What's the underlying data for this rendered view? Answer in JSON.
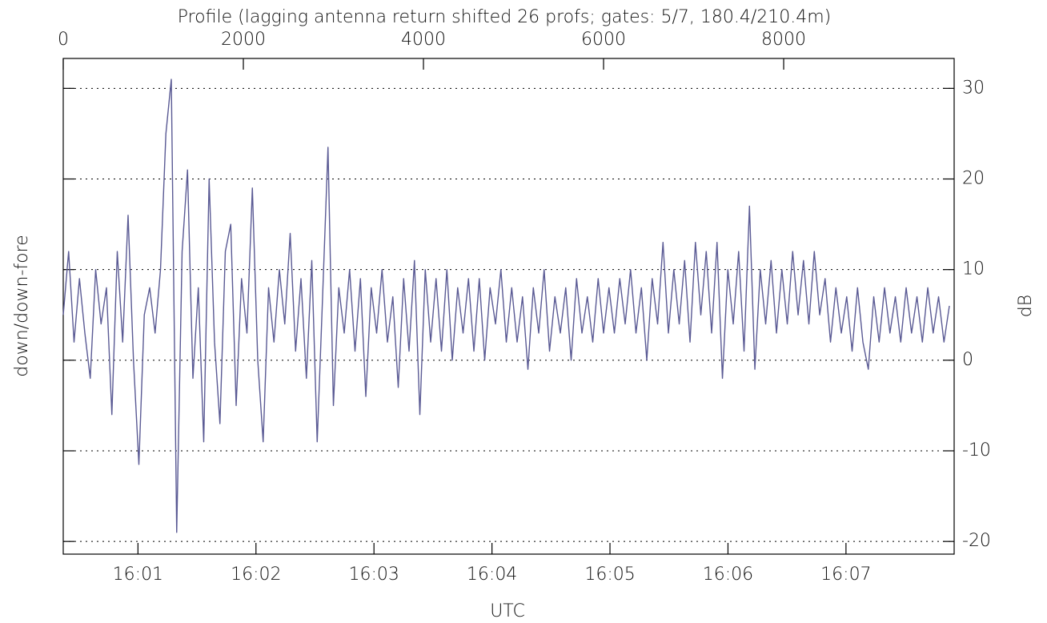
{
  "chart_data": {
    "type": "line",
    "title": "Profile (lagging antenna return shifted 26 profs; gates: 5/7, 180.4/210.4m)",
    "y_label": "down/down-fore",
    "y2_label": "dB",
    "x2_label": "UTC",
    "xlim": [
      0,
      9893
    ],
    "xticks": [
      0,
      2000,
      4000,
      6000,
      8000
    ],
    "x2lim": [
      57622,
      58075
    ],
    "x2ticks": [
      {
        "value": 57660,
        "label": "16:01"
      },
      {
        "value": 57720,
        "label": "16:02"
      },
      {
        "value": 57780,
        "label": "16:03"
      },
      {
        "value": 57840,
        "label": "16:04"
      },
      {
        "value": 57900,
        "label": "16:05"
      },
      {
        "value": 57960,
        "label": "16:06"
      },
      {
        "value": 58020,
        "label": "16:07"
      }
    ],
    "ylim": [
      -21.4,
      33.3
    ],
    "yticks": [
      -20,
      -10,
      0,
      10,
      20,
      30
    ],
    "grid": true,
    "x": [
      0,
      60,
      120,
      180,
      240,
      300,
      360,
      420,
      480,
      540,
      600,
      660,
      720,
      780,
      840,
      900,
      960,
      1020,
      1080,
      1140,
      1200,
      1260,
      1320,
      1380,
      1440,
      1500,
      1560,
      1620,
      1680,
      1740,
      1800,
      1860,
      1920,
      1980,
      2040,
      2100,
      2160,
      2220,
      2280,
      2340,
      2400,
      2460,
      2520,
      2580,
      2640,
      2700,
      2760,
      2820,
      2880,
      2940,
      3000,
      3060,
      3120,
      3180,
      3240,
      3300,
      3360,
      3420,
      3480,
      3540,
      3600,
      3660,
      3720,
      3780,
      3840,
      3900,
      3960,
      4020,
      4080,
      4140,
      4200,
      4260,
      4320,
      4380,
      4440,
      4500,
      4560,
      4620,
      4680,
      4740,
      4800,
      4860,
      4920,
      4980,
      5040,
      5100,
      5160,
      5220,
      5280,
      5340,
      5400,
      5460,
      5520,
      5580,
      5640,
      5700,
      5760,
      5820,
      5880,
      5940,
      6000,
      6060,
      6120,
      6180,
      6240,
      6300,
      6360,
      6420,
      6480,
      6540,
      6600,
      6660,
      6720,
      6780,
      6840,
      6900,
      6960,
      7020,
      7080,
      7140,
      7200,
      7260,
      7320,
      7380,
      7440,
      7500,
      7560,
      7620,
      7680,
      7740,
      7800,
      7860,
      7920,
      7980,
      8040,
      8100,
      8160,
      8220,
      8280,
      8340,
      8400,
      8460,
      8520,
      8580,
      8640,
      8700,
      8760,
      8820,
      8880,
      8940,
      9000,
      9060,
      9120,
      9180,
      9240,
      9300,
      9360,
      9420,
      9480,
      9540,
      9600,
      9660,
      9720,
      9780,
      9840
    ],
    "series": [
      {
        "color": "#5a5a94",
        "values": [
          5,
          12,
          2,
          9,
          3,
          -2,
          10,
          4,
          8,
          -6,
          12,
          2,
          16,
          0,
          -11.5,
          5,
          8,
          3,
          10,
          25,
          31,
          -19,
          12,
          21,
          -2,
          8,
          -9,
          20,
          2,
          -7,
          12,
          15,
          -5,
          9,
          3,
          19,
          0,
          -9,
          8,
          2,
          10,
          4,
          14,
          1,
          9,
          -2,
          11,
          -9,
          7,
          23.5,
          -5,
          8,
          3,
          10,
          1,
          9,
          -4,
          8,
          3,
          10,
          2,
          7,
          -3,
          9,
          1,
          11,
          -6,
          10,
          2,
          9,
          1,
          10,
          0,
          8,
          3,
          9,
          1,
          9,
          0,
          8,
          4,
          10,
          2,
          8,
          2,
          7,
          -1,
          8,
          3,
          10,
          1,
          7,
          3,
          8,
          0,
          9,
          3,
          7,
          2,
          9,
          3,
          8,
          3,
          9,
          4,
          10,
          3,
          8,
          0,
          9,
          4,
          13,
          3,
          10,
          4,
          11,
          2,
          13,
          5,
          12,
          3,
          13,
          -2,
          10,
          4,
          12,
          1,
          17,
          -1,
          10,
          4,
          11,
          3,
          10,
          4,
          12,
          5,
          11,
          4,
          12,
          5,
          9,
          2,
          8,
          3,
          7,
          1,
          8,
          2,
          -1,
          7,
          2,
          8,
          3,
          7,
          2,
          8,
          3,
          7,
          2,
          8,
          3,
          7,
          2,
          6
        ]
      }
    ]
  }
}
